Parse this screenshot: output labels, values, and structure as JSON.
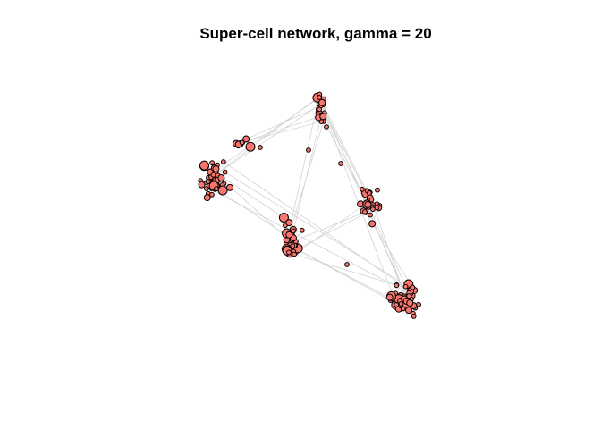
{
  "title": "Super-cell network, gamma = 20",
  "colors": {
    "node_fill": "#F8766D",
    "node_stroke": "#000000",
    "edge": "#d3d3d3",
    "background": "#ffffff"
  }
}
